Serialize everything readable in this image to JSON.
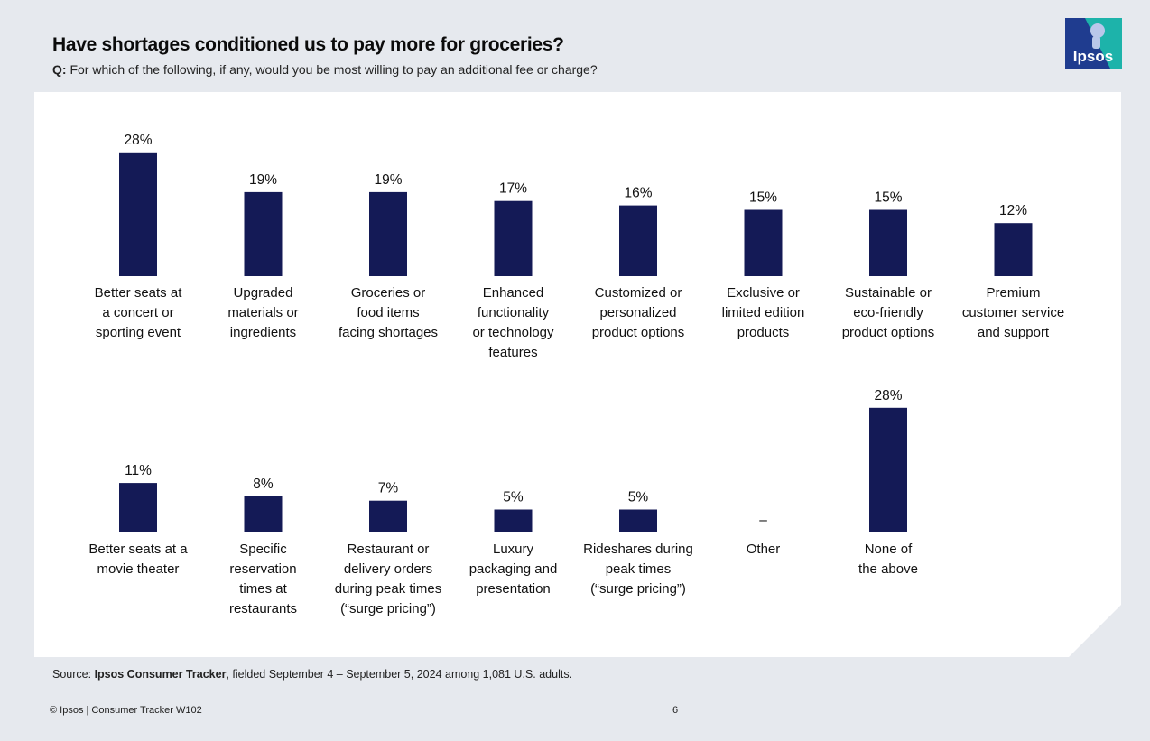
{
  "title": "Have shortages conditioned us to pay more for groceries?",
  "question": {
    "prefix": "Q:",
    "text": " For which of the following, if any, would you be most willing to pay an additional fee or charge?"
  },
  "logo": {
    "text": "Ipsos",
    "colors": {
      "primary": "#1e3a8a",
      "accent": "#1fb1a9"
    }
  },
  "colors": {
    "bar": "#141a56",
    "panel": "#ffffff",
    "background": "#e6e9ee"
  },
  "chart_data": {
    "type": "bar",
    "unit": "%",
    "ylim": [
      0,
      30
    ],
    "rows": [
      {
        "categories": [
          [
            "Better seats at",
            "a concert or",
            "sporting event"
          ],
          [
            "Upgraded",
            "materials or",
            "ingredients"
          ],
          [
            "Groceries or",
            "food items",
            "facing shortages"
          ],
          [
            "Enhanced",
            "functionality",
            "or technology",
            "features"
          ],
          [
            "Customized or",
            "personalized",
            "product options"
          ],
          [
            "Exclusive or",
            "limited edition",
            "products"
          ],
          [
            "Sustainable or",
            "eco-friendly",
            "product options"
          ],
          [
            "Premium",
            "customer service",
            "and support"
          ]
        ],
        "values": [
          28,
          19,
          19,
          17,
          16,
          15,
          15,
          12
        ],
        "labels": [
          "28%",
          "19%",
          "19%",
          "17%",
          "16%",
          "15%",
          "15%",
          "12%"
        ]
      },
      {
        "categories": [
          [
            "Better seats at a",
            "movie theater"
          ],
          [
            "Specific",
            "reservation",
            "times at",
            "restaurants"
          ],
          [
            "Restaurant or",
            "delivery orders",
            "during peak times",
            "(“surge pricing”)"
          ],
          [
            "Luxury",
            "packaging and",
            "presentation"
          ],
          [
            "Rideshares during",
            "peak times",
            "(“surge pricing”)"
          ],
          [
            "Other"
          ],
          [
            "None of",
            "the above"
          ]
        ],
        "values": [
          11,
          8,
          7,
          5,
          5,
          null,
          28
        ],
        "labels": [
          "11%",
          "8%",
          "7%",
          "5%",
          "5%",
          "–",
          "28%"
        ]
      }
    ]
  },
  "source": {
    "prefix": "Source: ",
    "name": "Ipsos Consumer Tracker",
    "rest": ", fielded September 4 – September 5, 2024 among 1,081 U.S. adults."
  },
  "footer": {
    "copyright": "© Ipsos | Consumer Tracker W102",
    "page": "6"
  }
}
